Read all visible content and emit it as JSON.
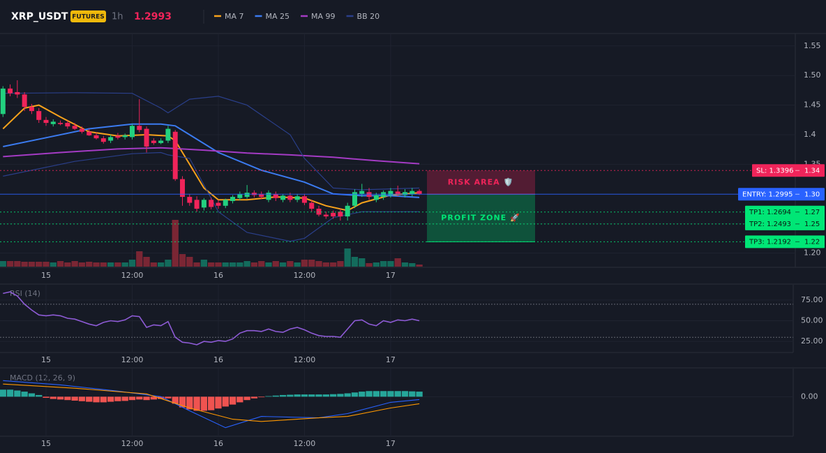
{
  "header": {
    "symbol": "XRP_USDT",
    "badge": "FUTURES",
    "interval": "1h",
    "price": 1.2993
  },
  "chart_data": [
    {
      "type": "candlestick",
      "categories": [
        null,
        null,
        null,
        null,
        null,
        null,
        "15",
        null,
        null,
        null,
        null,
        null,
        null,
        null,
        null,
        null,
        null,
        null,
        "12:00",
        null,
        null,
        null,
        null,
        null,
        null,
        null,
        null,
        null,
        null,
        null,
        "16",
        null,
        null,
        null,
        null,
        null,
        null,
        null,
        null,
        null,
        null,
        null,
        "12:00",
        null,
        null,
        null,
        null,
        null,
        null,
        null,
        null,
        null,
        null,
        null,
        "17",
        null,
        null,
        null,
        null
      ],
      "open": [
        1.435,
        1.478,
        1.472,
        1.468,
        1.447,
        1.44,
        1.425,
        1.418,
        1.42,
        1.42,
        1.415,
        1.41,
        1.405,
        1.399,
        1.394,
        1.39,
        1.398,
        1.396,
        1.396,
        1.415,
        1.41,
        1.39,
        1.386,
        1.39,
        1.405,
        1.325,
        1.295,
        1.29,
        1.277,
        1.29,
        1.285,
        1.28,
        1.288,
        1.293,
        1.295,
        1.302,
        1.3,
        1.29,
        1.3,
        1.29,
        1.297,
        1.29,
        1.296,
        1.285,
        1.275,
        1.265,
        1.268,
        1.27,
        1.262,
        1.28,
        1.3,
        1.303,
        1.29,
        1.295,
        1.298,
        1.304,
        1.298,
        1.3,
        1.305
      ],
      "high": [
        1.482,
        1.485,
        1.492,
        1.472,
        1.452,
        1.445,
        1.43,
        1.426,
        1.424,
        1.424,
        1.42,
        1.414,
        1.41,
        1.404,
        1.398,
        1.4,
        1.403,
        1.402,
        1.418,
        1.46,
        1.414,
        1.394,
        1.394,
        1.415,
        1.408,
        1.33,
        1.3,
        1.296,
        1.293,
        1.294,
        1.29,
        1.292,
        1.298,
        1.304,
        1.315,
        1.306,
        1.304,
        1.306,
        1.304,
        1.3,
        1.302,
        1.3,
        1.3,
        1.29,
        1.28,
        1.27,
        1.272,
        1.275,
        1.285,
        1.308,
        1.317,
        1.31,
        1.302,
        1.306,
        1.31,
        1.314,
        1.308,
        1.31,
        1.308
      ],
      "low": [
        1.43,
        1.465,
        1.462,
        1.44,
        1.435,
        1.42,
        1.415,
        1.414,
        1.416,
        1.41,
        1.408,
        1.402,
        1.398,
        1.392,
        1.385,
        1.386,
        1.392,
        1.392,
        1.392,
        1.404,
        1.37,
        1.383,
        1.384,
        1.386,
        1.322,
        1.28,
        1.28,
        1.27,
        1.272,
        1.274,
        1.275,
        1.276,
        1.284,
        1.289,
        1.292,
        1.294,
        1.291,
        1.286,
        1.288,
        1.286,
        1.286,
        1.286,
        1.281,
        1.27,
        1.262,
        1.258,
        1.258,
        1.255,
        1.255,
        1.276,
        1.295,
        1.29,
        1.286,
        1.29,
        1.294,
        1.296,
        1.294,
        1.296,
        1.298
      ],
      "close": [
        1.478,
        1.47,
        1.468,
        1.447,
        1.44,
        1.425,
        1.42,
        1.422,
        1.418,
        1.414,
        1.41,
        1.405,
        1.399,
        1.394,
        1.388,
        1.396,
        1.395,
        1.399,
        1.415,
        1.408,
        1.38,
        1.386,
        1.39,
        1.41,
        1.325,
        1.295,
        1.285,
        1.275,
        1.29,
        1.278,
        1.28,
        1.29,
        1.295,
        1.3,
        1.302,
        1.298,
        1.295,
        1.302,
        1.293,
        1.297,
        1.29,
        1.296,
        1.285,
        1.275,
        1.265,
        1.262,
        1.262,
        1.262,
        1.28,
        1.303,
        1.305,
        1.295,
        1.298,
        1.303,
        1.305,
        1.3,
        1.303,
        1.305,
        1.3
      ],
      "volume": [
        8,
        8,
        8,
        7,
        7,
        7,
        7,
        6,
        8,
        6,
        8,
        6,
        7,
        6,
        6,
        6,
        6,
        6,
        10,
        22,
        14,
        6,
        6,
        10,
        67,
        18,
        14,
        6,
        10,
        6,
        6,
        6,
        6,
        6,
        8,
        6,
        8,
        6,
        8,
        6,
        8,
        6,
        10,
        10,
        8,
        6,
        6,
        8,
        26,
        14,
        12,
        5,
        6,
        8,
        8,
        12,
        6,
        5,
        3
      ],
      "up_color": "#22d17f",
      "down_color": "#f0245a",
      "volume_up_color": "#136b5c",
      "volume_down_color": "#7a2634",
      "series": [
        {
          "name": "MA 7",
          "color": "#f7a21b",
          "x": [
            0,
            3,
            5,
            8,
            12,
            16,
            20,
            23,
            24,
            26,
            28,
            30,
            34,
            38,
            42,
            45,
            48,
            50,
            54,
            58
          ],
          "values": [
            1.41,
            1.445,
            1.45,
            1.43,
            1.405,
            1.398,
            1.4,
            1.398,
            1.39,
            1.35,
            1.31,
            1.29,
            1.29,
            1.295,
            1.293,
            1.28,
            1.272,
            1.285,
            1.298,
            1.302
          ]
        },
        {
          "name": "MA 25",
          "color": "#3b7bf0",
          "x": [
            0,
            6,
            12,
            18,
            22,
            24,
            26,
            30,
            36,
            42,
            46,
            50,
            54,
            58
          ],
          "values": [
            1.38,
            1.395,
            1.41,
            1.418,
            1.418,
            1.415,
            1.4,
            1.37,
            1.34,
            1.32,
            1.3,
            1.297,
            1.297,
            1.294
          ]
        },
        {
          "name": "MA 99",
          "color": "#a43bc4",
          "x": [
            0,
            8,
            16,
            22,
            28,
            34,
            40,
            46,
            52,
            58
          ],
          "values": [
            1.363,
            1.37,
            1.376,
            1.378,
            1.374,
            1.369,
            1.366,
            1.362,
            1.356,
            1.351
          ]
        },
        {
          "name": "BB 20",
          "color": "#2a3f8a",
          "x": [
            0,
            10,
            18,
            22,
            23,
            26,
            30,
            34,
            40,
            42,
            46,
            50,
            58
          ],
          "upper": [
            1.47,
            1.471,
            1.47,
            1.445,
            1.437,
            1.46,
            1.465,
            1.45,
            1.4,
            1.36,
            1.31,
            1.307,
            1.31
          ],
          "lower": [
            1.33,
            1.355,
            1.368,
            1.37,
            1.366,
            1.36,
            1.27,
            1.235,
            1.22,
            1.225,
            1.26,
            1.27,
            1.27
          ]
        }
      ],
      "levels": [
        {
          "value": 1.3396,
          "label": "SL: 1.3396",
          "price_label": "1.34",
          "color": "#f0245a",
          "style": "dotted"
        },
        {
          "value": 1.2995,
          "label": "ENTRY: 1.2995",
          "price_label": "1.30",
          "color": "#2962ff",
          "style": "solid"
        },
        {
          "value": 1.2694,
          "label": "TP1: 1.2694",
          "price_label": "1.27",
          "color": "#00e676",
          "style": "dotted"
        },
        {
          "value": 1.2493,
          "label": "TP2: 1.2493",
          "price_label": "1.25",
          "color": "#00e676",
          "style": "dotted"
        },
        {
          "value": 1.2192,
          "label": "TP3: 1.2192",
          "price_label": "1.22",
          "color": "#00e676",
          "style": "dotted"
        }
      ],
      "zones": [
        {
          "label": "RISK AREA 🛡️",
          "from": 1.3396,
          "to": 1.2995,
          "color": "#f0245a"
        },
        {
          "label": "PROFIT ZONE 🚀",
          "from": 1.2995,
          "to": 1.2192,
          "color": "#00e676"
        }
      ],
      "ylim": [
        1.176,
        1.571
      ],
      "yticks": [
        1.55,
        {
          "value": 1.5,
          "label": "1.50"
        },
        1.45,
        1.4,
        1.35,
        {
          "value": 1.3,
          "label": "1.30"
        },
        1.25,
        {
          "value": 1.2,
          "label": "1.20"
        }
      ],
      "grid": true
    },
    {
      "type": "line",
      "title": "RSI (14)",
      "categories": [
        null,
        null,
        null,
        null,
        null,
        null,
        "15",
        null,
        null,
        null,
        null,
        null,
        null,
        null,
        null,
        null,
        null,
        null,
        "12:00",
        null,
        null,
        null,
        null,
        null,
        null,
        null,
        null,
        null,
        null,
        null,
        "16",
        null,
        null,
        null,
        null,
        null,
        null,
        null,
        null,
        null,
        null,
        null,
        "12:00",
        null,
        null,
        null,
        null,
        null,
        null,
        null,
        null,
        null,
        null,
        null,
        "17",
        null,
        null,
        null,
        null
      ],
      "series": [
        {
          "color": "#8e5bd6",
          "values": [
            83,
            85,
            80,
            70,
            63,
            57,
            56,
            57,
            56,
            53,
            52,
            49,
            46,
            44,
            48,
            50,
            49,
            51,
            56,
            55,
            42,
            45,
            44,
            49,
            30,
            24,
            23,
            21,
            25,
            24,
            26,
            25,
            28,
            35,
            38,
            38,
            37,
            40,
            37,
            36,
            40,
            42,
            39,
            35,
            32,
            31,
            31,
            30,
            40,
            50,
            51,
            46,
            44,
            50,
            48,
            51,
            50,
            52,
            50
          ]
        }
      ],
      "levels": [
        70,
        30
      ],
      "ylim": [
        11.6,
        93.5
      ],
      "yticks": [
        {
          "value": 75,
          "label": "75.00"
        },
        {
          "value": 50,
          "label": "50.00"
        },
        {
          "value": 25,
          "label": "25.00"
        }
      ],
      "grid": true
    },
    {
      "type": "macd",
      "title": "MACD (12, 26, 9)",
      "categories": [
        null,
        null,
        null,
        null,
        null,
        null,
        "15",
        null,
        null,
        null,
        null,
        null,
        null,
        null,
        null,
        null,
        null,
        null,
        "12:00",
        null,
        null,
        null,
        null,
        null,
        null,
        null,
        null,
        null,
        null,
        null,
        "16",
        null,
        null,
        null,
        null,
        null,
        null,
        null,
        null,
        null,
        null,
        null,
        "12:00",
        null,
        null,
        null,
        null,
        null,
        null,
        null,
        null,
        null,
        null,
        null,
        "17",
        null,
        null,
        null,
        null
      ],
      "histogram": [
        0.0025,
        0.0025,
        0.0022,
        0.0018,
        0.0012,
        0.0006,
        -0.0004,
        -0.0008,
        -0.001,
        -0.0012,
        -0.0014,
        -0.0016,
        -0.0018,
        -0.002,
        -0.002,
        -0.0018,
        -0.0016,
        -0.0015,
        -0.0012,
        -0.001,
        -0.0012,
        -0.001,
        -0.0008,
        -0.0006,
        -0.0025,
        -0.0038,
        -0.0045,
        -0.005,
        -0.005,
        -0.0048,
        -0.0042,
        -0.0035,
        -0.0028,
        -0.002,
        -0.0012,
        -0.0006,
        -0.0002,
        0.0002,
        0.0004,
        0.0006,
        0.0007,
        0.0008,
        0.0008,
        0.0008,
        0.0008,
        0.0008,
        0.0009,
        0.001,
        0.0012,
        0.0015,
        0.0018,
        0.002,
        0.002,
        0.002,
        0.002,
        0.002,
        0.002,
        0.0019,
        0.0018
      ],
      "histogram_up_color": "#26a69a",
      "histogram_down_color": "#ef5350",
      "series": [
        {
          "color": "#2962ff",
          "x": [
            0,
            8,
            16,
            22,
            26,
            31,
            36,
            44,
            48,
            54,
            58
          ],
          "values": [
            0.0057,
            0.0042,
            0.002,
            0.0,
            -0.005,
            -0.011,
            -0.007,
            -0.0075,
            -0.006,
            -0.002,
            -0.001
          ]
        },
        {
          "color": "#ff9800",
          "x": [
            0,
            10,
            20,
            26,
            32,
            36,
            44,
            48,
            54,
            58
          ],
          "values": [
            0.0045,
            0.003,
            0.001,
            -0.004,
            -0.008,
            -0.0088,
            -0.0075,
            -0.007,
            -0.004,
            -0.0025
          ]
        }
      ],
      "ylim": [
        -0.02,
        0.01
      ],
      "yticks": [
        {
          "value": 0,
          "label": "0.00"
        }
      ],
      "grid": true
    }
  ]
}
